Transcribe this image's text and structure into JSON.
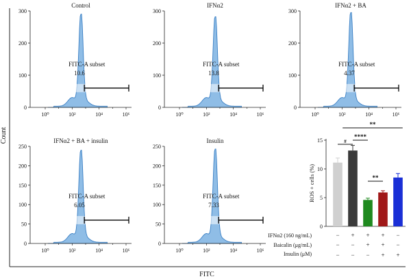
{
  "figure": {
    "y_axis_label": "Count",
    "x_axis_label": "FITC"
  },
  "histograms": [
    {
      "title": "Control",
      "gate_label": "FITC-A subset",
      "gate_value": "10.6",
      "yticks": [
        "0",
        "100",
        "200",
        "300"
      ],
      "xticks": [
        "10⁰",
        "10²",
        "10⁴",
        "10⁶"
      ],
      "ymax": 300,
      "peak": 290
    },
    {
      "title": "IFNα2",
      "gate_label": "FITC-A subset",
      "gate_value": "13.8",
      "yticks": [
        "0",
        "100",
        "200",
        "300"
      ],
      "xticks": [
        "10⁰",
        "10²",
        "10⁴",
        "10⁶"
      ],
      "ymax": 300,
      "peak": 282
    },
    {
      "title": "IFNα2 + BA",
      "gate_label": "FITC-A subset",
      "gate_value": "4.37",
      "yticks": [
        "0",
        "100",
        "200",
        "300"
      ],
      "xticks": [
        "10⁰",
        "10²",
        "10⁴",
        "10⁶"
      ],
      "ymax": 300,
      "peak": 295
    },
    {
      "title": "IFNα2 + BA + insulin",
      "gate_label": "FITC-A subset",
      "gate_value": "6.05",
      "yticks": [
        "0",
        "50",
        "100",
        "150",
        "200",
        "250"
      ],
      "xticks": [
        "10⁰",
        "10²",
        "10⁴",
        "10⁶"
      ],
      "ymax": 250,
      "peak": 240
    },
    {
      "title": "Insulin",
      "gate_label": "FITC-A subset",
      "gate_value": "7.33",
      "yticks": [
        "0",
        "50",
        "100",
        "150",
        "200",
        "250"
      ],
      "xticks": [
        "10⁰",
        "10²",
        "10⁴",
        "10⁶"
      ],
      "ymax": 250,
      "peak": 243
    }
  ],
  "chart_data": [
    {
      "type": "bar",
      "ylabel": "ROS + cells (%)",
      "ylim": [
        0,
        15
      ],
      "yticks": [
        "0",
        "5",
        "10",
        "15"
      ],
      "categories": [
        "Control",
        "IFNα2",
        "IFNα2 + BA",
        "IFNα2 + BA + insulin",
        "Insulin"
      ],
      "values": [
        11.1,
        13.2,
        4.6,
        5.9,
        8.5
      ],
      "errors": [
        0.8,
        0.9,
        0.3,
        0.3,
        0.7
      ],
      "colors": [
        "#d0d0d0",
        "#3a3a3a",
        "#1f8a1f",
        "#a01818",
        "#1a2fd6"
      ],
      "significance": [
        {
          "label": "#",
          "from": 0,
          "to": 1
        },
        {
          "label": "****",
          "from": 1,
          "to": 2
        },
        {
          "label": "**",
          "from": 2,
          "to": 3
        },
        {
          "label": "**",
          "from": 1,
          "to": 4
        }
      ],
      "treatment_rows": [
        {
          "label": "IFNα2 (160 ng/mL)",
          "signs": [
            "−",
            "+",
            "+",
            "+",
            "−"
          ]
        },
        {
          "label": "Baicalin (μg/mL)",
          "signs": [
            "−",
            "−",
            "+",
            "+",
            "−"
          ]
        },
        {
          "label": "Insulin (μM)",
          "signs": [
            "−",
            "−",
            "−",
            "+",
            "+"
          ]
        }
      ]
    }
  ],
  "colors": {
    "histogram_fill": "#8fbde6",
    "histogram_stroke": "#3a7fc4",
    "gate_band": "#ffffff"
  }
}
